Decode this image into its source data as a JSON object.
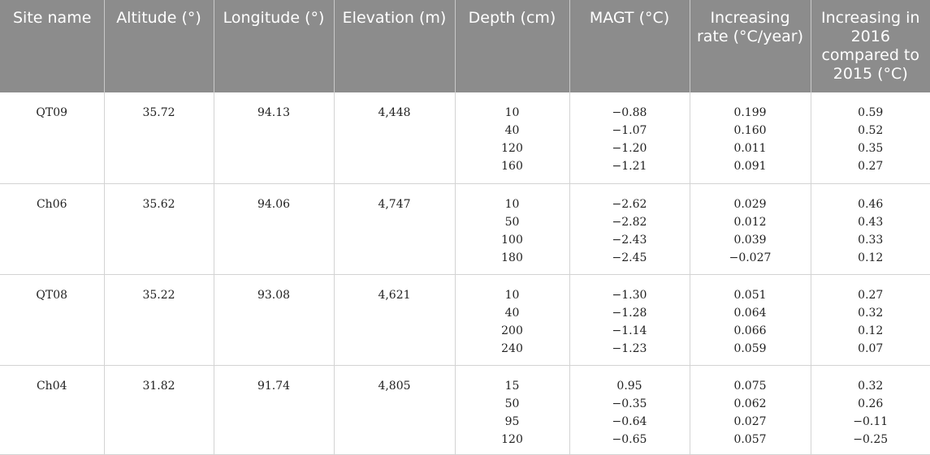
{
  "table": {
    "headers": [
      "Site name",
      "Altitude (°)",
      "Longitude (°)",
      "Elevation (m)",
      "Depth (cm)",
      "MAGT (°C)",
      "Increasing rate (°C/year)",
      "Increasing in 2016 compared to 2015 (°C)"
    ],
    "rows": [
      {
        "site": "QT09",
        "altitude": "35.72",
        "longitude": "94.13",
        "elevation": "4,448",
        "depth": [
          "10",
          "40",
          "120",
          "160"
        ],
        "magt": [
          "−0.88",
          "−1.07",
          "−1.20",
          "−1.21"
        ],
        "rate": [
          "0.199",
          "0.160",
          "0.011",
          "0.091"
        ],
        "increase": [
          "0.59",
          "0.52",
          "0.35",
          "0.27"
        ]
      },
      {
        "site": "Ch06",
        "altitude": "35.62",
        "longitude": "94.06",
        "elevation": "4,747",
        "depth": [
          "10",
          "50",
          "100",
          "180"
        ],
        "magt": [
          "−2.62",
          "−2.82",
          "−2.43",
          "−2.45"
        ],
        "rate": [
          "0.029",
          "0.012",
          "0.039",
          "−0.027"
        ],
        "increase": [
          "0.46",
          "0.43",
          "0.33",
          "0.12"
        ]
      },
      {
        "site": "QT08",
        "altitude": "35.22",
        "longitude": "93.08",
        "elevation": "4,621",
        "depth": [
          "10",
          "40",
          "200",
          "240"
        ],
        "magt": [
          "−1.30",
          "−1.28",
          "−1.14",
          "−1.23"
        ],
        "rate": [
          "0.051",
          "0.064",
          "0.066",
          "0.059"
        ],
        "increase": [
          "0.27",
          "0.32",
          "0.12",
          "0.07"
        ]
      },
      {
        "site": "Ch04",
        "altitude": "31.82",
        "longitude": "91.74",
        "elevation": "4,805",
        "depth": [
          "15",
          "50",
          "95",
          "120"
        ],
        "magt": [
          "0.95",
          "−0.35",
          "−0.64",
          "−0.65"
        ],
        "rate": [
          "0.075",
          "0.062",
          "0.027",
          "0.057"
        ],
        "increase": [
          "0.32",
          "0.26",
          "−0.11",
          "−0.25"
        ]
      }
    ]
  }
}
